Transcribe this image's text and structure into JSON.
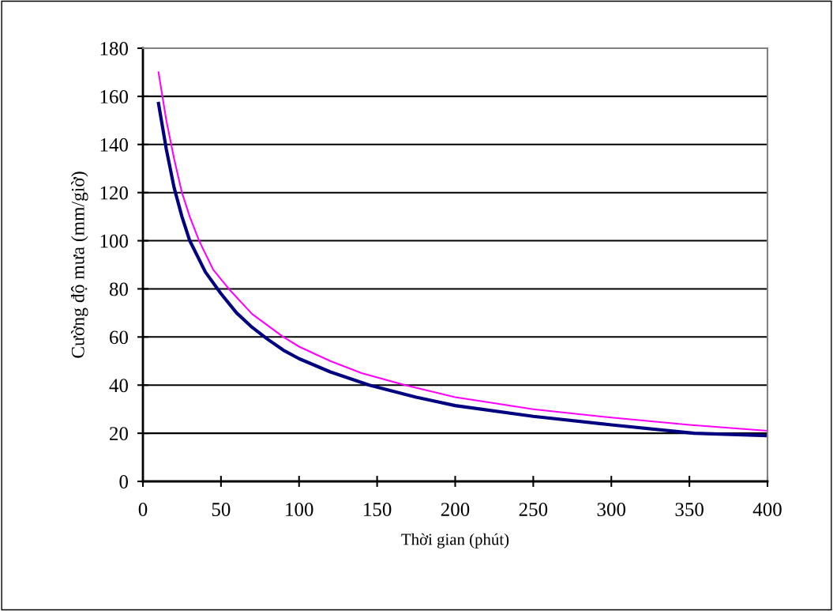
{
  "chart_data": {
    "type": "line",
    "xlabel": "Thời gian (phút)",
    "ylabel": "Cường độ mưa (mm/giờ)",
    "xlim": [
      0,
      400
    ],
    "xticks": [
      0,
      50,
      100,
      150,
      200,
      250,
      300,
      350,
      400
    ],
    "ylim": [
      0,
      180
    ],
    "yticks": [
      0,
      20,
      40,
      60,
      80,
      100,
      120,
      140,
      160,
      180
    ],
    "grid": "y",
    "legend": false,
    "marker": "none",
    "line_style": "solid",
    "series": [
      {
        "color": "#ff00ff",
        "x": [
          10,
          15,
          20,
          25,
          30,
          36,
          45,
          55,
          70,
          90,
          100,
          120,
          140,
          168,
          200,
          250,
          300,
          350,
          400
        ],
        "values": [
          170,
          150,
          134,
          120,
          110,
          100,
          88,
          80,
          69.5,
          60,
          56,
          50,
          45,
          40,
          35,
          30,
          26.5,
          23.5,
          21
        ]
      },
      {
        "color": "#000080",
        "x": [
          10,
          15,
          20,
          25,
          30,
          40,
          50,
          60,
          70,
          80,
          90,
          100,
          120,
          145,
          175,
          200,
          250,
          300,
          353,
          400
        ],
        "values": [
          157,
          138,
          122,
          110,
          100,
          87,
          78,
          70,
          64,
          59,
          54.5,
          51,
          45.5,
          40,
          35,
          31.5,
          27,
          23.5,
          20,
          19
        ]
      }
    ]
  }
}
